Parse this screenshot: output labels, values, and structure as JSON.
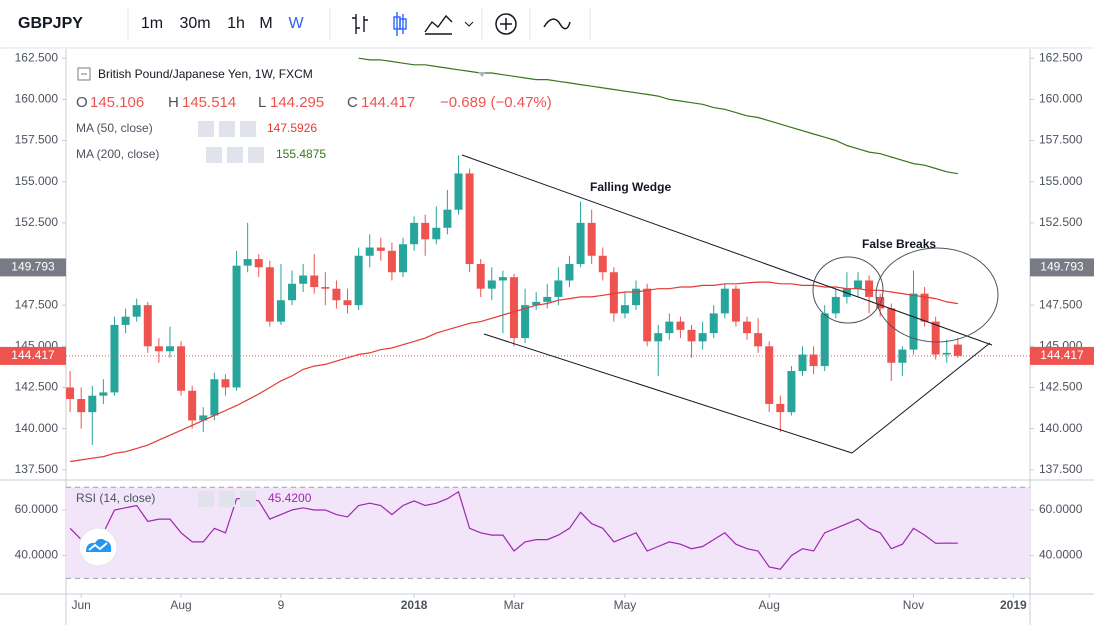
{
  "toolbar": {
    "symbol": "GBPJPY",
    "intervals": [
      "1m",
      "30m",
      "1h",
      "M",
      "W"
    ],
    "active_interval": 4
  },
  "chart_data": {
    "type": "candlestick",
    "title": "British Pound/Japanese Yen, 1W, FXCM",
    "ohlc_letters": [
      "O",
      "H",
      "L",
      "C"
    ],
    "change": "−0.689 (−0.47%)",
    "up_color": "#26a69a",
    "down_color": "#ef5350",
    "open": [
      142.5,
      141.8,
      141.0,
      142.0,
      142.2,
      146.3,
      146.8,
      147.5,
      145.0,
      144.7,
      145.0,
      142.3,
      140.5,
      140.8,
      143.0,
      142.5,
      149.9,
      150.3,
      149.8,
      146.5,
      147.8,
      148.8,
      149.3,
      148.6,
      148.5,
      147.8,
      147.5,
      150.5,
      151.0,
      150.8,
      149.5,
      151.2,
      152.5,
      151.5,
      152.2,
      153.3,
      155.5,
      150.0,
      148.5,
      149.0,
      149.2,
      145.5,
      147.5,
      147.7,
      148.0,
      149.0,
      150.0,
      152.5,
      150.5,
      149.5,
      147.0,
      147.5,
      148.5,
      145.3,
      145.8,
      146.5,
      146.0,
      145.3,
      145.8,
      147.0,
      148.5,
      146.5,
      145.8,
      145.0,
      141.5,
      141.0,
      143.5,
      144.5,
      143.8,
      147.0,
      148.0,
      148.5,
      149.0,
      148.0,
      147.3,
      144.0,
      144.8,
      148.2,
      146.5,
      144.5,
      145.106
    ],
    "high": [
      143.5,
      142.5,
      142.6,
      143.0,
      146.8,
      147.3,
      147.9,
      147.7,
      145.5,
      146.2,
      145.3,
      142.6,
      141.3,
      143.4,
      143.3,
      150.8,
      152.5,
      150.6,
      150.2,
      150.0,
      149.6,
      150.0,
      150.6,
      149.5,
      149.0,
      148.5,
      151.0,
      151.8,
      151.6,
      151.3,
      151.6,
      152.9,
      153.0,
      153.5,
      154.5,
      156.6,
      155.8,
      150.3,
      149.8,
      149.6,
      149.4,
      148.5,
      148.3,
      148.8,
      149.8,
      150.5,
      153.8,
      153.3,
      151.0,
      149.8,
      148.3,
      149.0,
      148.8,
      146.3,
      147.0,
      146.8,
      146.3,
      146.5,
      147.5,
      148.8,
      148.7,
      146.8,
      146.7,
      145.3,
      142.0,
      143.8,
      145.0,
      145.0,
      147.5,
      148.5,
      149.5,
      149.5,
      149.3,
      148.2,
      147.6,
      145.0,
      149.6,
      148.6,
      146.8,
      145.4,
      145.514
    ],
    "low": [
      141.0,
      140.0,
      139.0,
      141.5,
      142.0,
      145.8,
      146.5,
      144.6,
      144.0,
      144.3,
      142.0,
      140.0,
      139.8,
      140.5,
      142.0,
      142.3,
      149.5,
      149.2,
      146.2,
      146.3,
      147.5,
      148.3,
      148.2,
      147.5,
      147.3,
      147.0,
      147.2,
      149.8,
      150.2,
      149.0,
      149.2,
      150.8,
      150.5,
      151.2,
      151.8,
      153.0,
      149.5,
      148.0,
      147.8,
      145.8,
      145.0,
      145.2,
      147.2,
      147.3,
      147.5,
      148.6,
      149.8,
      150.0,
      149.0,
      146.5,
      146.7,
      147.2,
      145.0,
      143.2,
      145.4,
      145.5,
      144.3,
      144.8,
      145.5,
      146.7,
      146.2,
      145.4,
      144.6,
      141.0,
      139.8,
      140.8,
      143.2,
      143.3,
      143.5,
      146.7,
      147.6,
      148.0,
      147.0,
      146.8,
      142.9,
      143.2,
      144.5,
      146.2,
      144.2,
      144.0,
      144.295
    ],
    "close": [
      141.8,
      141.0,
      142.0,
      142.2,
      146.3,
      146.8,
      147.5,
      145.0,
      144.7,
      145.0,
      142.3,
      140.5,
      140.8,
      143.0,
      142.5,
      149.9,
      150.3,
      149.8,
      146.5,
      147.8,
      148.8,
      149.3,
      148.6,
      148.5,
      147.8,
      147.5,
      150.5,
      151.0,
      150.8,
      149.5,
      151.2,
      152.5,
      151.5,
      152.2,
      153.3,
      155.5,
      150.0,
      148.5,
      149.0,
      149.2,
      145.5,
      147.5,
      147.7,
      148.0,
      149.0,
      150.0,
      152.5,
      150.5,
      149.5,
      147.0,
      147.5,
      148.5,
      145.3,
      145.8,
      146.5,
      146.0,
      145.3,
      145.8,
      147.0,
      148.5,
      146.5,
      145.8,
      145.0,
      141.5,
      141.0,
      143.5,
      144.5,
      143.8,
      147.0,
      148.0,
      148.5,
      149.0,
      148.0,
      147.3,
      144.0,
      144.8,
      148.2,
      146.5,
      144.5,
      144.6,
      144.417
    ],
    "xlim": [
      -1,
      86.5
    ],
    "xticks": [
      {
        "value": 1,
        "label": "Jun"
      },
      {
        "value": 10,
        "label": "Aug"
      },
      {
        "value": 19,
        "label": "9"
      },
      {
        "value": 31,
        "label": "2018"
      },
      {
        "value": 40,
        "label": "Mar"
      },
      {
        "value": 50,
        "label": "May"
      },
      {
        "value": 63,
        "label": "Aug"
      },
      {
        "value": 76,
        "label": "Nov"
      },
      {
        "value": 85,
        "label": "2019"
      }
    ],
    "ylim": [
      137,
      163
    ],
    "yticks": [
      {
        "value": 137.5,
        "label": "137.500"
      },
      {
        "value": 140,
        "label": "140.000"
      },
      {
        "value": 142.5,
        "label": "142.500"
      },
      {
        "value": 145,
        "label": "145.000"
      },
      {
        "value": 147.5,
        "label": "147.500"
      },
      {
        "value": 150,
        "label": "150.000"
      },
      {
        "value": 152.5,
        "label": "152.500"
      },
      {
        "value": 155,
        "label": "155.000"
      },
      {
        "value": 157.5,
        "label": "157.500"
      },
      {
        "value": 160,
        "label": "160.000"
      },
      {
        "value": 162.5,
        "label": "162.500"
      }
    ],
    "marker_price": 149.793,
    "series": [
      {
        "name": "MA (50, close)",
        "color": "#e53935",
        "values": [
          138.0,
          138.1,
          138.2,
          138.3,
          138.5,
          138.6,
          138.8,
          139.0,
          139.3,
          139.6,
          139.9,
          140.2,
          140.5,
          140.8,
          141.1,
          141.4,
          141.75,
          142.1,
          142.5,
          142.9,
          143.2,
          143.6,
          143.8,
          143.9,
          144.1,
          144.3,
          144.5,
          144.6,
          144.8,
          144.9,
          145.1,
          145.3,
          145.5,
          145.8,
          146.0,
          146.2,
          146.4,
          146.5,
          146.7,
          146.9,
          147.1,
          147.3,
          147.5,
          147.6,
          147.8,
          147.9,
          148.0,
          148.0,
          148.1,
          148.2,
          148.3,
          148.3,
          148.4,
          148.5,
          148.5,
          148.6,
          148.6,
          148.7,
          148.7,
          148.8,
          148.8,
          148.85,
          148.9,
          148.9,
          148.8,
          148.8,
          148.7,
          148.7,
          148.6,
          148.6,
          148.5,
          148.5,
          148.4,
          148.4,
          148.3,
          148.2,
          148.1,
          148.0,
          147.9,
          147.7,
          147.5926
        ]
      },
      {
        "name": "MA (200, close)",
        "color": "#38761d",
        "values": [
          null,
          null,
          null,
          null,
          null,
          null,
          null,
          null,
          null,
          null,
          null,
          null,
          null,
          null,
          null,
          null,
          null,
          null,
          null,
          null,
          null,
          null,
          null,
          null,
          null,
          null,
          162.5,
          162.4,
          162.4,
          162.3,
          162.2,
          162.1,
          162.1,
          162.0,
          161.9,
          161.8,
          161.7,
          161.6,
          161.6,
          161.5,
          161.4,
          161.3,
          161.2,
          161.2,
          161.1,
          161.0,
          160.9,
          160.8,
          160.7,
          160.6,
          160.5,
          160.4,
          160.3,
          160.2,
          160.0,
          159.9,
          159.8,
          159.7,
          159.5,
          159.4,
          159.2,
          159.0,
          158.9,
          158.7,
          158.5,
          158.3,
          158.1,
          157.9,
          157.7,
          157.5,
          157.2,
          157.0,
          156.8,
          156.7,
          156.5,
          156.3,
          156.1,
          156.0,
          155.8,
          155.6,
          155.4875
        ]
      }
    ],
    "annotations": [
      "Falling Wedge",
      "False Breaks"
    ],
    "rsi": {
      "type": "line",
      "name": "RSI (14, close)",
      "color": "#9c27b0",
      "values": [
        52,
        47,
        48,
        50,
        60,
        61,
        62,
        55,
        56,
        56,
        50,
        46,
        46,
        52,
        50,
        65,
        65,
        64,
        56,
        58,
        60,
        61,
        60,
        60,
        58,
        57,
        62,
        63,
        62,
        58,
        62,
        64,
        62,
        63,
        65,
        68,
        52,
        50,
        49,
        49,
        42,
        46,
        47,
        47,
        49,
        52,
        59,
        54,
        52,
        46,
        48,
        50,
        42,
        44,
        46,
        45,
        43,
        44,
        47,
        50,
        45,
        43,
        42,
        35,
        34,
        40,
        43,
        42,
        50,
        52,
        54,
        56,
        52,
        50,
        43,
        45,
        52,
        49,
        45.4,
        45.5,
        45.42
      ],
      "value_labels": [
        null,
        null,
        null,
        null,
        null,
        null,
        null,
        null,
        null,
        null,
        null,
        null,
        null,
        null,
        null,
        null,
        null,
        null,
        null,
        null,
        null,
        null,
        null,
        null,
        null,
        null,
        null,
        null,
        null,
        null,
        null,
        null,
        null,
        null,
        null,
        null,
        null,
        null,
        null,
        null,
        null,
        null,
        null,
        null,
        null,
        null,
        null,
        null,
        null,
        null,
        null,
        null,
        null,
        null,
        null,
        null,
        null,
        null,
        null,
        null,
        null,
        null,
        null,
        null,
        null,
        null,
        null,
        null,
        null,
        null,
        null,
        null,
        null,
        null,
        null,
        null,
        null,
        null,
        null,
        null,
        "45.4200"
      ],
      "ylim": [
        24,
        71
      ],
      "yticks": [
        {
          "value": 40,
          "label": "40.0000"
        },
        {
          "value": 60,
          "label": "60.0000"
        }
      ],
      "band": [
        30,
        70
      ]
    }
  }
}
